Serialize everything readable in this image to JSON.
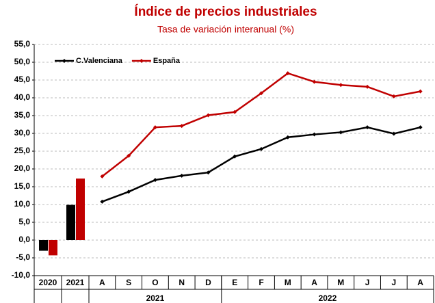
{
  "chart_data": {
    "type": "combo",
    "title": "Índice de precios industriales",
    "subtitle": "Tasa de variación interanual (%)",
    "bar_categories": [
      "2020",
      "2021"
    ],
    "x_groups": [
      {
        "label": "2021",
        "categories": [
          "A",
          "S",
          "O",
          "N",
          "D"
        ]
      },
      {
        "label": "2022",
        "categories": [
          "E",
          "F",
          "M",
          "A",
          "M",
          "J",
          "J",
          "A"
        ]
      }
    ],
    "series": [
      {
        "name": "C.Valenciana",
        "color": "#000000",
        "bar_values": [
          -3.0,
          9.9
        ],
        "line_values": [
          10.8,
          13.6,
          16.9,
          18.1,
          19.0,
          23.5,
          25.6,
          28.9,
          29.7,
          30.3,
          31.7,
          29.9,
          31.7
        ]
      },
      {
        "name": "España",
        "color": "#c00000",
        "bar_values": [
          -4.3,
          17.3
        ],
        "line_values": [
          17.9,
          23.7,
          31.7,
          32.1,
          35.1,
          36.0,
          41.3,
          46.9,
          44.5,
          43.6,
          43.1,
          40.4,
          41.8
        ]
      }
    ],
    "ylim": [
      -10,
      55
    ],
    "yticks": [
      {
        "value": -10,
        "label": "-10,0"
      },
      {
        "value": -5,
        "label": "-5,0"
      },
      {
        "value": 0,
        "label": "0,0"
      },
      {
        "value": 5,
        "label": "5,0"
      },
      {
        "value": 10,
        "label": "10,0"
      },
      {
        "value": 15,
        "label": "15,0"
      },
      {
        "value": 20,
        "label": "20,0"
      },
      {
        "value": 25,
        "label": "25,0"
      },
      {
        "value": 30,
        "label": "30,0"
      },
      {
        "value": 35,
        "label": "35,0"
      },
      {
        "value": 40,
        "label": "40,0"
      },
      {
        "value": 45,
        "label": "45,0"
      },
      {
        "value": 50,
        "label": "50,0"
      },
      {
        "value": 55,
        "label": "55,0"
      }
    ],
    "grid": true,
    "legend": "top-left"
  }
}
